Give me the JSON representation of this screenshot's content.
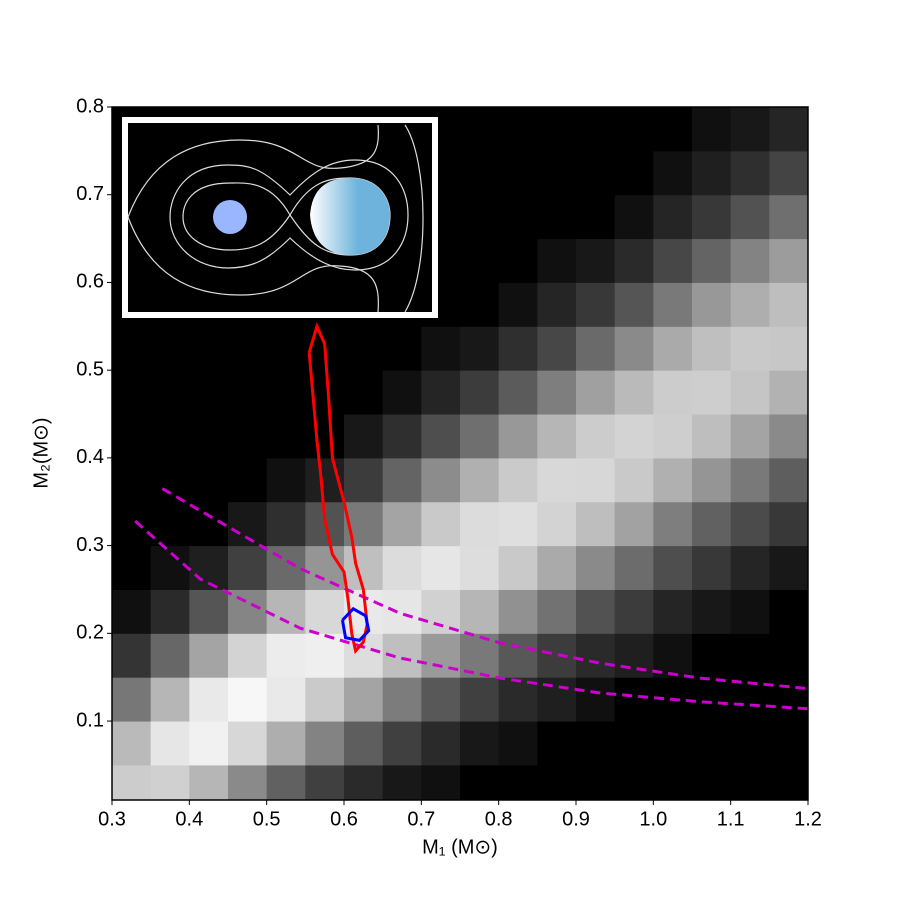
{
  "chart_data": {
    "type": "hist2d",
    "xlabel": "M₁ (M⊙)",
    "ylabel": "M₂(M⊙)",
    "xlim": [
      0.3,
      1.2
    ],
    "ylim": [
      0.01,
      0.8
    ],
    "xticks": [
      0.3,
      0.4,
      0.5,
      0.6,
      0.7,
      0.8,
      0.9,
      {
        "value": 1,
        "label": "1.0"
      },
      1.1,
      1.2
    ],
    "yticks": [
      0.1,
      0.2,
      0.3,
      0.4,
      0.5,
      0.6,
      0.7,
      0.8
    ],
    "xbins": [
      0.3,
      0.35,
      0.4,
      0.45,
      0.5,
      0.55,
      0.6,
      0.65,
      0.7,
      0.75,
      0.8,
      0.85,
      0.9,
      0.95,
      1.0,
      1.05,
      1.1,
      1.15,
      1.2
    ],
    "ybins": [
      0,
      0.05,
      0.1,
      0.15,
      0.2,
      0.25,
      0.3,
      0.35,
      0.4,
      0.45,
      0.5,
      0.55,
      0.6,
      0.65,
      0.7,
      0.75,
      0.8
    ],
    "zlim": [
      0,
      100
    ],
    "z": [
      [
        69,
        71,
        57,
        36,
        20,
        10,
        5,
        2,
        1,
        0,
        0,
        0,
        0,
        0,
        0,
        0,
        0,
        0
      ],
      [
        59,
        84,
        91,
        75,
        53,
        33,
        19,
        10,
        5,
        2,
        1,
        0,
        0,
        0,
        0,
        0,
        0,
        0
      ],
      [
        28,
        57,
        86,
        95,
        86,
        68,
        48,
        30,
        17,
        10,
        5,
        3,
        1,
        0,
        0,
        0,
        0,
        0
      ],
      [
        7,
        22,
        48,
        73,
        88,
        90,
        79,
        62,
        43,
        29,
        17,
        9,
        5,
        3,
        1,
        0,
        0,
        0
      ],
      [
        1,
        5,
        16,
        34,
        57,
        76,
        86,
        84,
        72,
        57,
        39,
        26,
        15,
        9,
        4,
        2,
        1,
        0
      ],
      [
        0,
        1,
        3,
        10,
        23,
        41,
        62,
        78,
        84,
        79,
        67,
        51,
        36,
        24,
        14,
        8,
        4,
        2
      ],
      [
        0,
        0,
        0,
        2,
        6,
        15,
        29,
        48,
        67,
        78,
        80,
        73,
        61,
        47,
        31,
        20,
        13,
        8
      ],
      [
        0,
        0,
        0,
        0,
        1,
        3,
        9,
        21,
        37,
        54,
        68,
        76,
        75,
        67,
        54,
        41,
        29,
        19
      ],
      [
        0,
        0,
        0,
        0,
        0,
        0,
        2,
        6,
        14,
        25,
        42,
        57,
        69,
        73,
        70,
        61,
        48,
        36
      ],
      [
        0,
        0,
        0,
        0,
        0,
        0,
        0,
        1,
        4,
        9,
        18,
        31,
        46,
        59,
        69,
        70,
        65,
        55
      ],
      [
        0,
        0,
        0,
        0,
        0,
        0,
        0,
        0,
        1,
        2,
        6,
        12,
        23,
        36,
        51,
        62,
        67,
        66
      ],
      [
        0,
        0,
        0,
        0,
        0,
        0,
        0,
        0,
        0,
        0,
        1,
        4,
        8,
        16,
        29,
        42,
        53,
        61
      ],
      [
        0,
        0,
        0,
        0,
        0,
        0,
        0,
        0,
        0,
        0,
        0,
        1,
        2,
        5,
        12,
        21,
        33,
        44
      ],
      [
        0,
        0,
        0,
        0,
        0,
        0,
        0,
        0,
        0,
        0,
        0,
        0,
        0,
        1,
        4,
        8,
        15,
        25
      ],
      [
        0,
        0,
        0,
        0,
        0,
        0,
        0,
        0,
        0,
        0,
        0,
        0,
        0,
        0,
        1,
        3,
        6,
        11
      ],
      [
        0,
        0,
        0,
        0,
        0,
        0,
        0,
        0,
        0,
        0,
        0,
        0,
        0,
        0,
        0,
        1,
        2,
        4
      ]
    ],
    "contours": [
      {
        "color": "#ff0000",
        "x": [
          0.555,
          0.565,
          0.575,
          0.58,
          0.585,
          0.6,
          0.61,
          0.615,
          0.625,
          0.63,
          0.625,
          0.615,
          0.61,
          0.605,
          0.6,
          0.585,
          0.575,
          0.57,
          0.565,
          0.56,
          0.555
        ],
        "y": [
          0.52,
          0.55,
          0.53,
          0.47,
          0.4,
          0.35,
          0.31,
          0.28,
          0.25,
          0.21,
          0.19,
          0.18,
          0.2,
          0.24,
          0.27,
          0.29,
          0.33,
          0.38,
          0.42,
          0.47,
          0.52
        ]
      },
      {
        "color": "#0000ff",
        "x": [
          0.598,
          0.612,
          0.628,
          0.632,
          0.62,
          0.602,
          0.598
        ],
        "y": [
          0.215,
          0.228,
          0.22,
          0.203,
          0.192,
          0.195,
          0.215
        ]
      }
    ],
    "curves": [
      {
        "color": "#cc00cc",
        "dashed": true,
        "x": [
          0.365,
          0.543,
          0.672,
          0.802,
          0.931,
          1.06,
          1.2
        ],
        "y": [
          0.365,
          0.274,
          0.223,
          0.189,
          0.166,
          0.149,
          0.137
        ]
      },
      {
        "color": "#cc00cc",
        "dashed": true,
        "x": [
          0.33,
          0.414,
          0.543,
          0.672,
          0.802,
          0.931,
          1.06,
          1.2
        ],
        "y": [
          0.328,
          0.262,
          0.206,
          0.172,
          0.149,
          0.132,
          0.122,
          0.114
        ]
      }
    ]
  }
}
